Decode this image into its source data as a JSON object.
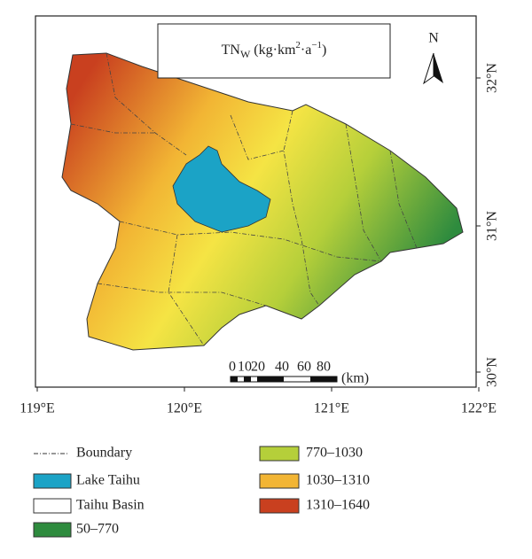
{
  "title": {
    "base": "TN",
    "sub": "W",
    "unit1": " (kg·km",
    "sup1": "2",
    "unit2": "·a",
    "sup2": "−1",
    "unit3": ")"
  },
  "north": "N",
  "lon_labels": [
    "119°E",
    "120°E",
    "121°E",
    "122°E"
  ],
  "lat_labels": [
    "32°N",
    "31°N",
    "30°N"
  ],
  "scale": {
    "labels": [
      0,
      10,
      20,
      40,
      60,
      80
    ],
    "unit": "(km)"
  },
  "legend": {
    "left": [
      {
        "label": "Boundary"
      },
      {
        "label": "Lake Taihu",
        "color": "#1ba3c6"
      },
      {
        "label": "Taihu Basin",
        "color": "#ffffff"
      },
      {
        "label": "50–770",
        "color": "#2e8b3e"
      }
    ],
    "right": [
      {
        "label": "770–1030",
        "color": "#b5cf3a"
      },
      {
        "label": "1030–1310",
        "color": "#f2b534"
      },
      {
        "label": "1310–1640",
        "color": "#c9401f"
      }
    ]
  }
}
